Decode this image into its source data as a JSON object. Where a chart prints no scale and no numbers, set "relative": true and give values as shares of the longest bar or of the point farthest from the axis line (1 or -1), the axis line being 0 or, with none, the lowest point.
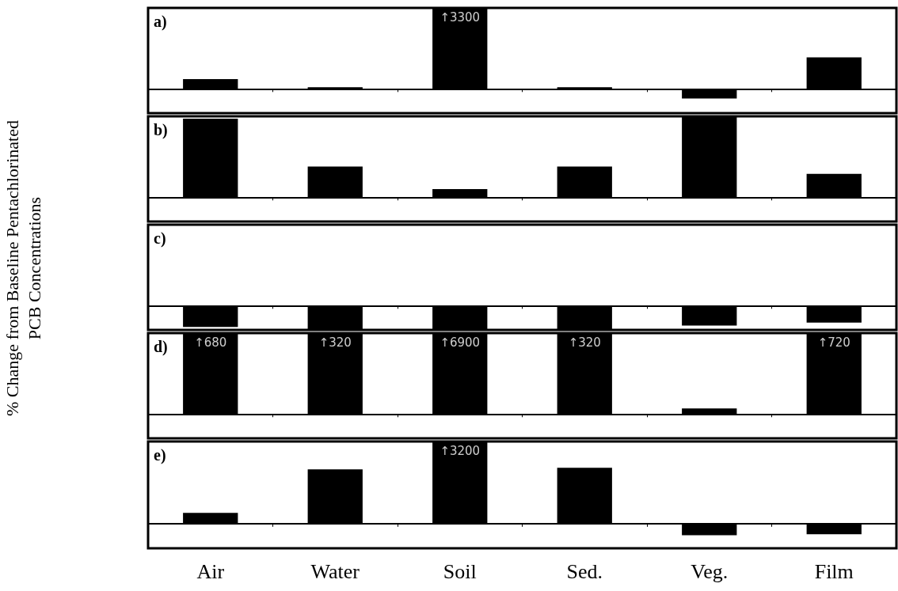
{
  "chart_data": [
    {
      "type": "bar",
      "title": "a)",
      "relative": true,
      "categories": [
        "Air",
        "Water",
        "Soil",
        "Sed.",
        "Veg.",
        "Film"
      ],
      "tick_labels": false,
      "annotations": [
        {
          "text": "↑3300",
          "x": "Soil",
          "y": 1
        }
      ],
      "series": [
        {
          "color": "#000000",
          "values": [
            0.12,
            0.02,
            1,
            0.02,
            -0.12,
            0.39
          ]
        }
      ]
    },
    {
      "type": "bar",
      "title": "b)",
      "relative": true,
      "categories": [
        "Air",
        "Water",
        "Soil",
        "Sed.",
        "Veg.",
        "Film"
      ],
      "tick_labels": false,
      "series": [
        {
          "color": "#000000",
          "values": [
            0.97,
            0.38,
            0.1,
            0.38,
            1,
            0.29
          ]
        }
      ]
    },
    {
      "type": "bar",
      "title": "c)",
      "relative": true,
      "ylabel": "% Change from Baseline Pentachlorinated PCB Concentrations",
      "categories": [
        "Air",
        "Water",
        "Soil",
        "Sed.",
        "Veg.",
        "Film"
      ],
      "tick_labels": false,
      "series": [
        {
          "color": "#000000",
          "values": [
            -0.88,
            -1,
            -1,
            -1,
            -0.82,
            -0.7
          ]
        }
      ]
    },
    {
      "type": "bar",
      "title": "d)",
      "relative": true,
      "categories": [
        "Air",
        "Water",
        "Soil",
        "Sed.",
        "Veg.",
        "Film"
      ],
      "tick_labels": false,
      "annotations": [
        {
          "text": "↑680",
          "x": "Air",
          "y": 1
        },
        {
          "text": "↑320",
          "x": "Water",
          "y": 1
        },
        {
          "text": "↑6900",
          "x": "Soil",
          "y": 1
        },
        {
          "text": "↑320",
          "x": "Sed.",
          "y": 1
        },
        {
          "text": "↑720",
          "x": "Film",
          "y": 1
        }
      ],
      "series": [
        {
          "color": "#000000",
          "values": [
            1,
            1,
            1,
            1,
            0.07,
            1
          ]
        }
      ]
    },
    {
      "type": "bar",
      "title": "e)",
      "relative": true,
      "categories": [
        "Air",
        "Water",
        "Soil",
        "Sed.",
        "Veg.",
        "Film"
      ],
      "tick_labels": "x",
      "annotations": [
        {
          "text": "↑3200",
          "x": "Soil",
          "y": 1
        }
      ],
      "series": [
        {
          "color": "#000000",
          "values": [
            0.13,
            0.66,
            1,
            0.68,
            -0.14,
            -0.13
          ]
        }
      ]
    }
  ]
}
